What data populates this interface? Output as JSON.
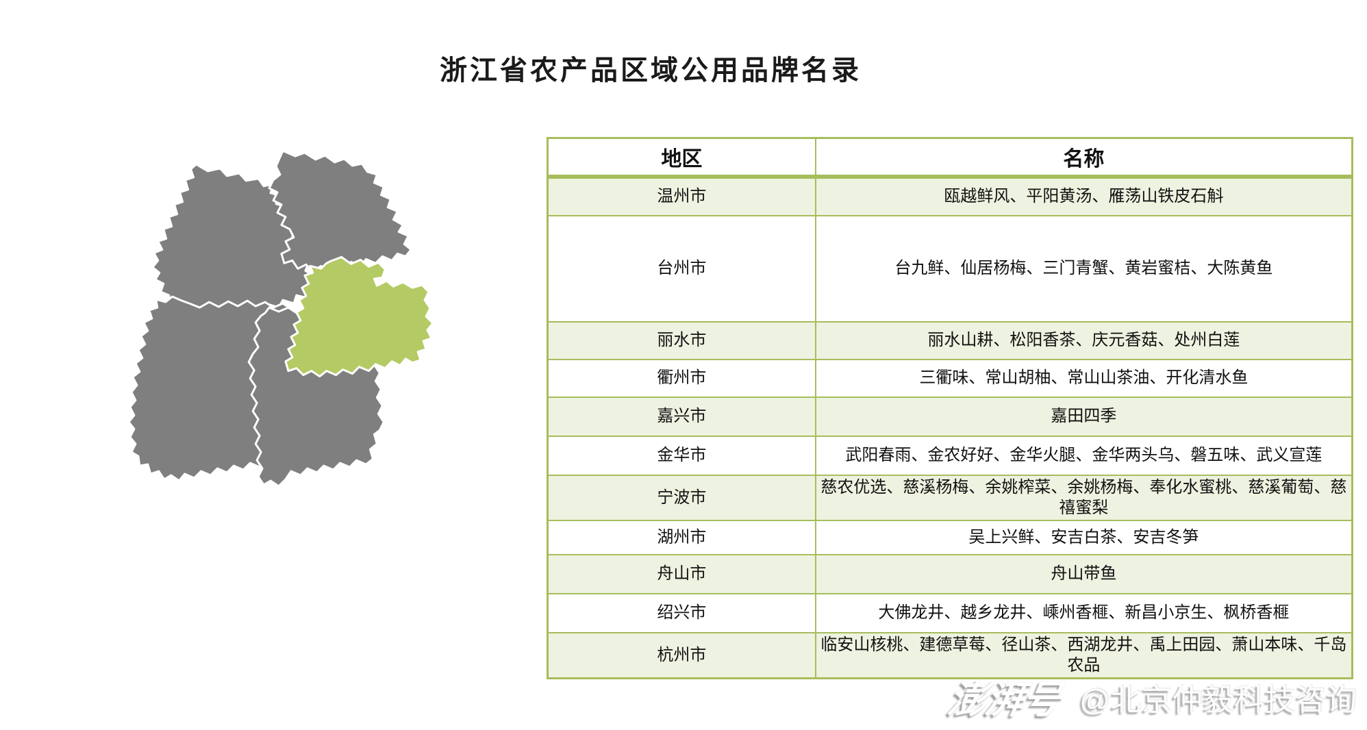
{
  "page": {
    "title": "浙江省农产品区域公用品牌名录"
  },
  "chart_data": {
    "type": "table",
    "title": "浙江省农产品区域公用品牌名录",
    "columns": [
      "地区",
      "名称"
    ],
    "rows": [
      [
        "温州市",
        "瓯越鲜风、平阳黄汤、雁荡山铁皮石斛"
      ],
      [
        "台州市",
        "台九鲜、仙居杨梅、三门青蟹、黄岩蜜桔、大陈黄鱼"
      ],
      [
        "丽水市",
        "丽水山耕、松阳香茶、庆元香菇、处州白莲"
      ],
      [
        "衢州市",
        "三衢味、常山胡柚、常山山茶油、开化清水鱼"
      ],
      [
        "嘉兴市",
        "嘉田四季"
      ],
      [
        "金华市",
        "武阳春雨、金农好好、金华火腿、金华两头乌、磐五味、武义宣莲"
      ],
      [
        "宁波市",
        "慈农优选、慈溪杨梅、余姚榨菜、余姚杨梅、奉化水蜜桃、慈溪葡萄、慈禧蜜梨"
      ],
      [
        "湖州市",
        "吴上兴鲜、安吉白茶、安吉冬笋"
      ],
      [
        "舟山市",
        "舟山带鱼"
      ],
      [
        "绍兴市",
        "大佛龙井、越乡龙井、嵊州香榧、新昌小京生、枫桥香榧"
      ],
      [
        "杭州市",
        "临安山核桃、建德草莓、径山茶、西湖龙井、禹上田园、萧山本味、千岛农品"
      ]
    ],
    "layout_hints": {
      "striped_rows": "odd data rows tinted light green",
      "grid": true,
      "legend": false
    }
  },
  "table": {
    "border_color": "#a6bd5c",
    "stripe_color": "#eef2e0"
  },
  "map": {
    "region_color": "#7f7f7f",
    "highlight_color": "#b4ca64",
    "border_color": "#ffffff"
  },
  "watermark": {
    "logo": "澎湃号",
    "account": "@北京仲毅科技咨询"
  }
}
